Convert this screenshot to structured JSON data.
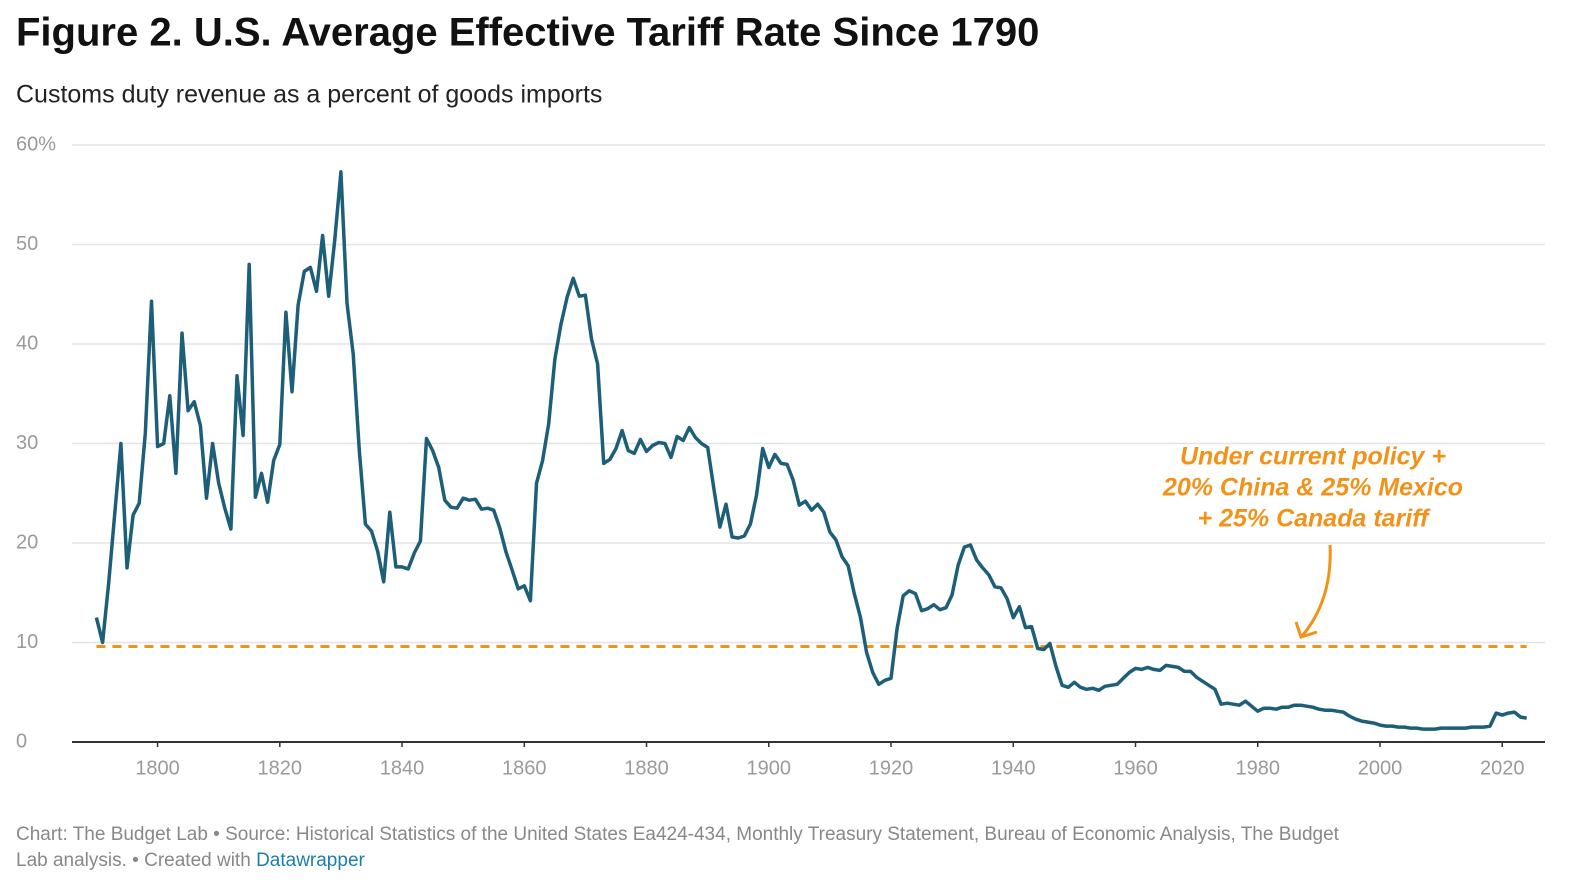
{
  "chart_data": {
    "type": "line",
    "title": "Figure 2. U.S. Average Effective Tariff Rate Since 1790",
    "subtitle": "Customs duty revenue as a percent of goods imports",
    "footer": "Chart: The Budget Lab • Source: Historical Statistics of the United States Ea424-434, Monthly Treasury Statement, Bureau of Economic Analysis, The Budget Lab analysis. • Created with ",
    "footer_link": "Datawrapper",
    "annotation": [
      "Under current policy +",
      "20% China & 25% Mexico",
      "+ 25% Canada tariff"
    ],
    "reference_line": {
      "value": 9.6,
      "color": "#f39219"
    },
    "x": [
      1790,
      1791,
      1792,
      1793,
      1794,
      1795,
      1796,
      1797,
      1798,
      1799,
      1800,
      1801,
      1802,
      1803,
      1804,
      1805,
      1806,
      1807,
      1808,
      1809,
      1810,
      1811,
      1812,
      1813,
      1814,
      1815,
      1816,
      1817,
      1818,
      1819,
      1820,
      1821,
      1822,
      1823,
      1824,
      1825,
      1826,
      1827,
      1828,
      1829,
      1830,
      1831,
      1832,
      1833,
      1834,
      1835,
      1836,
      1837,
      1838,
      1839,
      1840,
      1841,
      1842,
      1843,
      1844,
      1845,
      1846,
      1847,
      1848,
      1849,
      1850,
      1851,
      1852,
      1853,
      1854,
      1855,
      1856,
      1857,
      1858,
      1859,
      1860,
      1861,
      1862,
      1863,
      1864,
      1865,
      1866,
      1867,
      1868,
      1869,
      1870,
      1871,
      1872,
      1873,
      1874,
      1875,
      1876,
      1877,
      1878,
      1879,
      1880,
      1881,
      1882,
      1883,
      1884,
      1885,
      1886,
      1887,
      1888,
      1889,
      1890,
      1891,
      1892,
      1893,
      1894,
      1895,
      1896,
      1897,
      1898,
      1899,
      1900,
      1901,
      1902,
      1903,
      1904,
      1905,
      1906,
      1907,
      1908,
      1909,
      1910,
      1911,
      1912,
      1913,
      1914,
      1915,
      1916,
      1917,
      1918,
      1919,
      1920,
      1921,
      1922,
      1923,
      1924,
      1925,
      1926,
      1927,
      1928,
      1929,
      1930,
      1931,
      1932,
      1933,
      1934,
      1935,
      1936,
      1937,
      1938,
      1939,
      1940,
      1941,
      1942,
      1943,
      1944,
      1945,
      1946,
      1947,
      1948,
      1949,
      1950,
      1951,
      1952,
      1953,
      1954,
      1955,
      1956,
      1957,
      1958,
      1959,
      1960,
      1961,
      1962,
      1963,
      1964,
      1965,
      1966,
      1967,
      1968,
      1969,
      1970,
      1971,
      1972,
      1973,
      1974,
      1975,
      1976,
      1977,
      1978,
      1979,
      1980,
      1981,
      1982,
      1983,
      1984,
      1985,
      1986,
      1987,
      1988,
      1989,
      1990,
      1991,
      1992,
      1993,
      1994,
      1995,
      1996,
      1997,
      1998,
      1999,
      2000,
      2001,
      2002,
      2003,
      2004,
      2005,
      2006,
      2007,
      2008,
      2009,
      2010,
      2011,
      2012,
      2013,
      2014,
      2015,
      2016,
      2017,
      2018,
      2019,
      2020,
      2021,
      2022,
      2023,
      2024
    ],
    "series": [
      {
        "color": "#1d5e78",
        "values": [
          12.5,
          10,
          16,
          23,
          30,
          17.5,
          22.8,
          24,
          31,
          44.3,
          29.7,
          30,
          34.8,
          27,
          41.1,
          33.3,
          34.2,
          31.8,
          24.5,
          30,
          26,
          23.5,
          21.4,
          36.8,
          30.8,
          48,
          24.6,
          27,
          24.1,
          28.3,
          29.9,
          43.2,
          35.2,
          43.9,
          47.3,
          47.7,
          45.3,
          50.9,
          44.8,
          50.5,
          57.3,
          44.1,
          39,
          29.3,
          21.9,
          21.2,
          19.2,
          16.1,
          23.1,
          17.6,
          17.6,
          17.4,
          19,
          20.2,
          30.5,
          29.3,
          27.6,
          24.3,
          23.6,
          23.5,
          24.5,
          24.3,
          24.4,
          23.4,
          23.5,
          23.3,
          21.5,
          19.1,
          17.3,
          15.4,
          15.7,
          14.2,
          26,
          28.3,
          32,
          38.5,
          42,
          44.7,
          46.6,
          44.8,
          44.9,
          40.5,
          38,
          28,
          28.4,
          29.5,
          31.3,
          29.3,
          29,
          30.4,
          29.2,
          29.8,
          30.1,
          30,
          28.6,
          30.7,
          30.3,
          31.6,
          30.6,
          30,
          29.6,
          25.5,
          21.6,
          23.9,
          20.6,
          20.5,
          20.7,
          21.9,
          24.8,
          29.5,
          27.6,
          28.9,
          28,
          27.9,
          26.3,
          23.8,
          24.2,
          23.3,
          23.9,
          23.1,
          21.1,
          20.3,
          18.6,
          17.7,
          14.9,
          12.5,
          9,
          7,
          5.8,
          6.2,
          6.4,
          11.4,
          14.7,
          15.2,
          14.9,
          13.2,
          13.4,
          13.8,
          13.3,
          13.5,
          14.8,
          17.8,
          19.6,
          19.8,
          18.3,
          17.5,
          16.8,
          15.6,
          15.5,
          14.4,
          12.5,
          13.6,
          11.5,
          11.6,
          9.4,
          9.3,
          9.9,
          7.6,
          5.7,
          5.5,
          6,
          5.5,
          5.3,
          5.4,
          5.2,
          5.6,
          5.7,
          5.8,
          6.4,
          7,
          7.4,
          7.3,
          7.5,
          7.3,
          7.2,
          7.7,
          7.6,
          7.5,
          7.1,
          7.1,
          6.5,
          6.1,
          5.7,
          5.3,
          3.8,
          3.9,
          3.8,
          3.7,
          4.1,
          3.6,
          3.1,
          3.4,
          3.4,
          3.3,
          3.5,
          3.5,
          3.7,
          3.7,
          3.6,
          3.5,
          3.3,
          3.2,
          3.2,
          3.1,
          3,
          2.6,
          2.3,
          2.1,
          2,
          1.9,
          1.7,
          1.6,
          1.6,
          1.5,
          1.5,
          1.4,
          1.4,
          1.3,
          1.3,
          1.3,
          1.4,
          1.4,
          1.4,
          1.4,
          1.4,
          1.5,
          1.5,
          1.5,
          1.6,
          2.9,
          2.7,
          2.9,
          3,
          2.5,
          2.4
        ]
      }
    ],
    "xlim": [
      1786,
      2027
    ],
    "xticks": [
      1800,
      1820,
      1840,
      1860,
      1880,
      1900,
      1920,
      1940,
      1960,
      1980,
      2000,
      2020
    ],
    "ylim": [
      0,
      60
    ],
    "yticks": [
      0,
      10,
      20,
      30,
      40,
      50,
      {
        "value": 60,
        "label": "60%"
      }
    ],
    "grid": true
  }
}
